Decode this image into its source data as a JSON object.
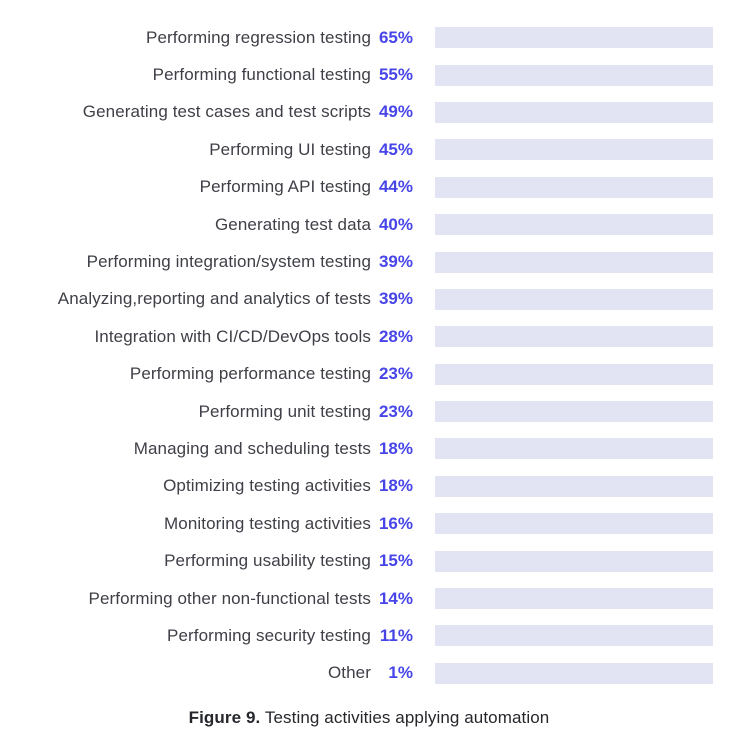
{
  "chart_data": {
    "type": "bar",
    "orientation": "horizontal",
    "title": "",
    "caption_prefix": "Figure 9.",
    "caption_text": "Testing activities applying automation",
    "value_suffix": "%",
    "xlim": [
      0,
      100
    ],
    "grid": false,
    "legend": false,
    "categories": [
      "Performing regression testing",
      "Performing functional testing",
      "Generating test cases and test scripts",
      "Performing UI testing",
      "Performing API testing",
      "Generating test data",
      "Performing integration/system testing",
      "Analyzing,reporting and analytics of tests",
      "Integration with CI/CD/DevOps tools",
      "Performing performance testing",
      "Performing unit testing",
      "Managing and scheduling tests",
      "Optimizing testing activities",
      "Monitoring testing activities",
      "Performing usability testing",
      "Performing other non-functional tests",
      "Performing security testing",
      "Other"
    ],
    "values": [
      65,
      55,
      49,
      45,
      44,
      40,
      39,
      39,
      28,
      23,
      23,
      18,
      18,
      16,
      15,
      14,
      11,
      1
    ],
    "value_labels": [
      "65%",
      "55%",
      "49%",
      "45%",
      "44%",
      "40%",
      "39%",
      "39%",
      "28%",
      "23%",
      "23%",
      "18%",
      "18%",
      "16%",
      "15%",
      "14%",
      "11%",
      "1%"
    ],
    "colors": {
      "bar": "#5a5ce4",
      "track": "#e2e4f4",
      "value_label": "#4745e8",
      "category_label": "#3e3f47",
      "caption": "#26272c",
      "background": "#ffffff"
    }
  }
}
